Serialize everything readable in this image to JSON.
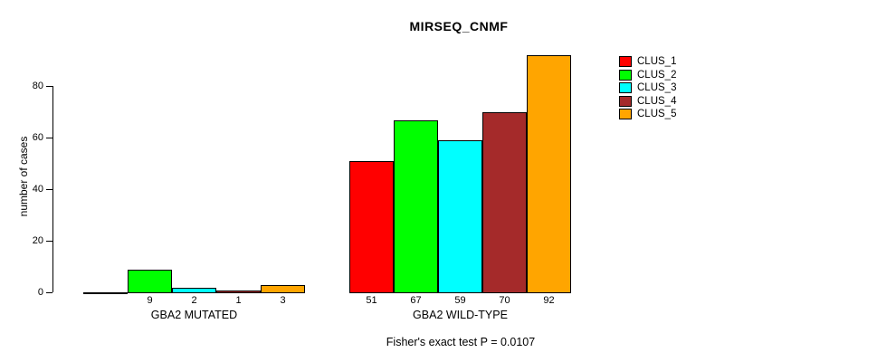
{
  "chart_data": {
    "type": "bar",
    "title": "MIRSEQ_CNMF",
    "xlabel": "",
    "ylabel": "number of cases",
    "y_ticks": [
      0,
      20,
      40,
      60,
      80
    ],
    "ylim": [
      0,
      92
    ],
    "grid": false,
    "legend_position": "topright",
    "series_names": [
      "CLUS_1",
      "CLUS_2",
      "CLUS_3",
      "CLUS_4",
      "CLUS_5"
    ],
    "series_colors": [
      "#FF0000",
      "#00FF00",
      "#00FFFF",
      "#A52A2A",
      "#FFA500"
    ],
    "groups": [
      {
        "label": "GBA2 MUTATED",
        "values": [
          0,
          9,
          2,
          1,
          3
        ],
        "value_labels": [
          "",
          "9",
          "2",
          "1",
          "3"
        ]
      },
      {
        "label": "GBA2 WILD-TYPE",
        "values": [
          51,
          67,
          59,
          70,
          92
        ],
        "value_labels": [
          "51",
          "67",
          "59",
          "70",
          "92"
        ]
      }
    ],
    "annotation": "Fisher's exact test P = 0.0107",
    "legend": {
      "entries": [
        {
          "label": "CLUS_1",
          "color": "#FF0000"
        },
        {
          "label": "CLUS_2",
          "color": "#00FF00"
        },
        {
          "label": "CLUS_3",
          "color": "#00FFFF"
        },
        {
          "label": "CLUS_4",
          "color": "#A52A2A"
        },
        {
          "label": "CLUS_5",
          "color": "#FFA500"
        }
      ]
    }
  }
}
